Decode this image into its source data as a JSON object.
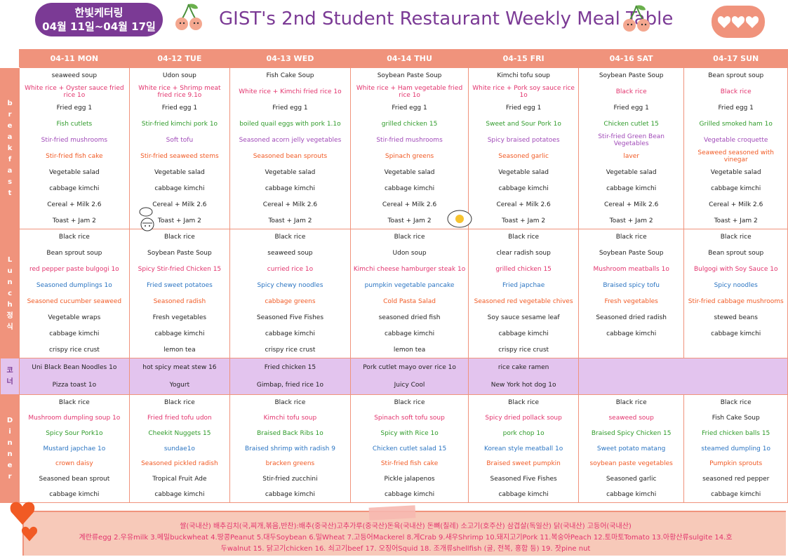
{
  "header": {
    "badge_line1": "한빛케터링",
    "badge_line2": "04월 11일~04월 17일",
    "title": "GIST's 2nd Student Restaurant Weekly Meal Table"
  },
  "colors": {
    "accent": "#f0937c",
    "purple": "#7b3a95",
    "corner_bg": "#e3c4ee"
  },
  "icons": [
    "cherry-icon",
    "heart-icon",
    "chef-doodle-icon",
    "egg-icon"
  ],
  "days": [
    "04-11 MON",
    "04-12 TUE",
    "04-13 WED",
    "04-14 THU",
    "04-15 FRI",
    "04-16 SAT",
    "04-17 SUN"
  ],
  "sections": {
    "breakfast": {
      "label": [
        "b",
        "r",
        "e",
        "a",
        "k",
        "f",
        "a",
        "s",
        "t"
      ]
    },
    "lunch": {
      "label": [
        "L",
        "u",
        "n",
        "c",
        "h"
      ],
      "sub": [
        "정",
        "식"
      ]
    },
    "corner": {
      "label": [
        "코",
        "너"
      ]
    },
    "dinner": {
      "label": [
        "D",
        "i",
        "n",
        "n",
        "e",
        "r"
      ]
    }
  },
  "breakfast": [
    [
      [
        "seaweed soup",
        "black"
      ],
      [
        "White rice + Oyster sauce fried rice 1o",
        "pink"
      ],
      [
        "Fried egg 1",
        "black"
      ],
      [
        "Fish cutlets",
        "green"
      ],
      [
        "Stir-fried mushrooms",
        "purple"
      ],
      [
        "Stir-fried fish cake",
        "orange"
      ],
      [
        "Vegetable salad",
        "black"
      ],
      [
        "cabbage kimchi",
        "black"
      ],
      [
        "Cereal + Milk 2.6",
        "black"
      ],
      [
        "Toast + Jam 2",
        "black"
      ]
    ],
    [
      [
        "Udon soup",
        "black"
      ],
      [
        "White rice + Shrimp meat fried rice 9.1o",
        "pink"
      ],
      [
        "Fried egg 1",
        "black"
      ],
      [
        "Stir-fried kimchi pork 1o",
        "green"
      ],
      [
        "Soft tofu",
        "purple"
      ],
      [
        "Stir-fried seaweed stems",
        "orange"
      ],
      [
        "Vegetable salad",
        "black"
      ],
      [
        "cabbage kimchi",
        "black"
      ],
      [
        "Cereal + Milk 2.6",
        "black"
      ],
      [
        "Toast + Jam 2",
        "black"
      ]
    ],
    [
      [
        "Fish Cake Soup",
        "black"
      ],
      [
        "White rice + Kimchi fried rice 1o",
        "pink"
      ],
      [
        "Fried egg 1",
        "black"
      ],
      [
        "boiled quail eggs with pork 1.1o",
        "green"
      ],
      [
        "Seasoned acorn jelly vegetables",
        "purple"
      ],
      [
        "Seasoned bean sprouts",
        "orange"
      ],
      [
        "Vegetable salad",
        "black"
      ],
      [
        "cabbage kimchi",
        "black"
      ],
      [
        "Cereal + Milk 2.6",
        "black"
      ],
      [
        "Toast + Jam 2",
        "black"
      ]
    ],
    [
      [
        "Soybean Paste Soup",
        "black"
      ],
      [
        "White rice + Ham vegetable fried rice 1o",
        "pink"
      ],
      [
        "Fried egg 1",
        "black"
      ],
      [
        "grilled chicken 15",
        "green"
      ],
      [
        "Stir-fried mushrooms",
        "purple"
      ],
      [
        "Spinach greens",
        "orange"
      ],
      [
        "Vegetable salad",
        "black"
      ],
      [
        "cabbage kimchi",
        "black"
      ],
      [
        "Cereal + Milk 2.6",
        "black"
      ],
      [
        "Toast + Jam 2",
        "black"
      ]
    ],
    [
      [
        "Kimchi tofu soup",
        "black"
      ],
      [
        "White rice + Pork soy sauce rice 1o",
        "pink"
      ],
      [
        "Fried egg 1",
        "black"
      ],
      [
        "Sweet and Sour Pork 1o",
        "green"
      ],
      [
        "Spicy braised potatoes",
        "purple"
      ],
      [
        "Seasoned garlic",
        "orange"
      ],
      [
        "Vegetable salad",
        "black"
      ],
      [
        "cabbage kimchi",
        "black"
      ],
      [
        "Cereal + Milk 2.6",
        "black"
      ],
      [
        "Toast + Jam 2",
        "black"
      ]
    ],
    [
      [
        "Soybean Paste Soup",
        "black"
      ],
      [
        "Black rice",
        "pink"
      ],
      [
        "Fried egg 1",
        "black"
      ],
      [
        "Chicken cutlet 15",
        "green"
      ],
      [
        "Stir-fried Green Bean Vegetables",
        "purple"
      ],
      [
        "laver",
        "orange"
      ],
      [
        "Vegetable salad",
        "black"
      ],
      [
        "cabbage kimchi",
        "black"
      ],
      [
        "Cereal + Milk 2.6",
        "black"
      ],
      [
        "Toast + Jam 2",
        "black"
      ]
    ],
    [
      [
        "Bean sprout soup",
        "black"
      ],
      [
        "Black rice",
        "pink"
      ],
      [
        "Fried egg 1",
        "black"
      ],
      [
        "Grilled smoked ham 1o",
        "green"
      ],
      [
        "Vegetable croquette",
        "purple"
      ],
      [
        "Seaweed seasoned with vinegar",
        "orange"
      ],
      [
        "Vegetable salad",
        "black"
      ],
      [
        "cabbage kimchi",
        "black"
      ],
      [
        "Cereal + Milk 2.6",
        "black"
      ],
      [
        "Toast + Jam 2",
        "black"
      ]
    ]
  ],
  "lunch": [
    [
      [
        "Black rice",
        "black"
      ],
      [
        "Bean sprout soup",
        "black"
      ],
      [
        "red pepper paste bulgogi 1o",
        "pink"
      ],
      [
        "Seasoned dumplings 1o",
        "blue"
      ],
      [
        "Seasoned cucumber seaweed",
        "orange"
      ],
      [
        "Vegetable wraps",
        "black"
      ],
      [
        "cabbage kimchi",
        "black"
      ],
      [
        "crispy rice crust",
        "black"
      ]
    ],
    [
      [
        "Black rice",
        "black"
      ],
      [
        "Soybean Paste Soup",
        "black"
      ],
      [
        "Spicy Stir-fried Chicken 15",
        "pink"
      ],
      [
        "Fried sweet potatoes",
        "blue"
      ],
      [
        "Seasoned radish",
        "orange"
      ],
      [
        "Fresh vegetables",
        "black"
      ],
      [
        "cabbage kimchi",
        "black"
      ],
      [
        "lemon tea",
        "black"
      ]
    ],
    [
      [
        "Black rice",
        "black"
      ],
      [
        "seaweed soup",
        "black"
      ],
      [
        "curried rice 1o",
        "pink"
      ],
      [
        "Spicy chewy noodles",
        "blue"
      ],
      [
        "cabbage greens",
        "orange"
      ],
      [
        "Seasoned Five Fishes",
        "black"
      ],
      [
        "cabbage kimchi",
        "black"
      ],
      [
        "crispy rice crust",
        "black"
      ]
    ],
    [
      [
        "Black rice",
        "black"
      ],
      [
        "Udon soup",
        "black"
      ],
      [
        "Kimchi cheese hamburger steak 1o",
        "pink"
      ],
      [
        "pumpkin vegetable pancake",
        "blue"
      ],
      [
        "Cold Pasta Salad",
        "orange"
      ],
      [
        "seasoned dried fish",
        "black"
      ],
      [
        "cabbage kimchi",
        "black"
      ],
      [
        "lemon tea",
        "black"
      ]
    ],
    [
      [
        "Black rice",
        "black"
      ],
      [
        "clear radish soup",
        "black"
      ],
      [
        "grilled chicken 15",
        "pink"
      ],
      [
        "Fried japchae",
        "blue"
      ],
      [
        "Seasoned red vegetable chives",
        "orange"
      ],
      [
        "Soy sauce sesame leaf",
        "black"
      ],
      [
        "cabbage kimchi",
        "black"
      ],
      [
        "crispy rice crust",
        "black"
      ]
    ],
    [
      [
        "Black rice",
        "black"
      ],
      [
        "Soybean Paste Soup",
        "black"
      ],
      [
        "Mushroom meatballs 1o",
        "pink"
      ],
      [
        "Braised spicy tofu",
        "blue"
      ],
      [
        "Fresh vegetables",
        "orange"
      ],
      [
        "Seasoned dried radish",
        "black"
      ],
      [
        "cabbage kimchi",
        "black"
      ],
      [
        "",
        "black"
      ]
    ],
    [
      [
        "Black rice",
        "black"
      ],
      [
        "Bean sprout soup",
        "black"
      ],
      [
        "Bulgogi with Soy Sauce 1o",
        "pink"
      ],
      [
        "Spicy noodles",
        "blue"
      ],
      [
        "Stir-fried cabbage mushrooms",
        "orange"
      ],
      [
        "stewed beans",
        "black"
      ],
      [
        "cabbage kimchi",
        "black"
      ],
      [
        "",
        "black"
      ]
    ]
  ],
  "corner": [
    [
      [
        "Uni Black Bean Noodles 1o",
        "black"
      ],
      [
        "Pizza toast 1o",
        "black"
      ]
    ],
    [
      [
        "hot spicy meat stew 16",
        "black"
      ],
      [
        "Yogurt",
        "black"
      ]
    ],
    [
      [
        "Fried chicken 15",
        "black"
      ],
      [
        "Gimbap, fried rice 1o",
        "black"
      ]
    ],
    [
      [
        "Pork cutlet mayo over rice 1o",
        "black"
      ],
      [
        "Juicy Cool",
        "black"
      ]
    ],
    [
      [
        "rice cake ramen",
        "black"
      ],
      [
        "New York hot dog 1o",
        "black"
      ]
    ]
  ],
  "dinner": [
    [
      [
        "Black rice",
        "black"
      ],
      [
        "Mushroom dumpling soup 1o",
        "pink"
      ],
      [
        "Spicy Sour Pork1o",
        "green"
      ],
      [
        "Mustard japchae 1o",
        "blue"
      ],
      [
        "crown daisy",
        "orange"
      ],
      [
        "Seasoned bean sprout",
        "black"
      ],
      [
        "cabbage kimchi",
        "black"
      ]
    ],
    [
      [
        "Black rice",
        "black"
      ],
      [
        "Fried fried tofu udon",
        "pink"
      ],
      [
        "Cheekit Nuggets 15",
        "green"
      ],
      [
        "sundae1o",
        "blue"
      ],
      [
        "Seasoned pickled radish",
        "orange"
      ],
      [
        "Tropical Fruit Ade",
        "black"
      ],
      [
        "cabbage kimchi",
        "black"
      ]
    ],
    [
      [
        "Black rice",
        "black"
      ],
      [
        "Kimchi tofu soup",
        "pink"
      ],
      [
        "Braised Back Ribs 1o",
        "green"
      ],
      [
        "Braised shrimp with radish 9",
        "blue"
      ],
      [
        "bracken greens",
        "orange"
      ],
      [
        "Stir-fried zucchini",
        "black"
      ],
      [
        "cabbage kimchi",
        "black"
      ]
    ],
    [
      [
        "Black rice",
        "black"
      ],
      [
        "Spinach soft tofu soup",
        "pink"
      ],
      [
        "Spicy with Rice 1o",
        "green"
      ],
      [
        "Chicken cutlet salad 15",
        "blue"
      ],
      [
        "Stir-fried fish cake",
        "orange"
      ],
      [
        "Pickle jalapenos",
        "black"
      ],
      [
        "cabbage kimchi",
        "black"
      ]
    ],
    [
      [
        "Black rice",
        "black"
      ],
      [
        "Spicy dried pollack soup",
        "pink"
      ],
      [
        "pork chop 1o",
        "green"
      ],
      [
        "Korean style meatball 1o",
        "blue"
      ],
      [
        "Braised sweet pumpkin",
        "orange"
      ],
      [
        "Seasoned Five Fishes",
        "black"
      ],
      [
        "cabbage kimchi",
        "black"
      ]
    ],
    [
      [
        "Black rice",
        "black"
      ],
      [
        "seaweed soup",
        "pink"
      ],
      [
        "Braised Spicy Chicken 15",
        "green"
      ],
      [
        "Sweet potato matang",
        "blue"
      ],
      [
        "soybean paste vegetables",
        "orange"
      ],
      [
        "Seasoned garlic",
        "black"
      ],
      [
        "cabbage kimchi",
        "black"
      ]
    ],
    [
      [
        "Black rice",
        "black"
      ],
      [
        "Fish Cake Soup",
        "black"
      ],
      [
        "Fried chicken balls 15",
        "green"
      ],
      [
        "steamed dumpling 1o",
        "blue"
      ],
      [
        "Pumpkin sprouts",
        "orange"
      ],
      [
        "seasoned red pepper",
        "black"
      ],
      [
        "cabbage kimchi",
        "black"
      ]
    ]
  ],
  "footer": {
    "line1": "쌀(국내산) 배추김치(국,찌개,볶음,반찬):배추(중국산)고추가루(중국산)돈육(국내산) 돈뼈(칠레) 소고기(호주산) 삼겹살(독일산) 닭(국내산) 고등어(국내산)",
    "line2": "계란류egg 2.우유milk 3.메밀buckwheat 4.땅콩Peanut 5.대두Soybean 6.밀Wheat 7.고등어Mackerel 8.게Crab 9.새우Shrimp 10.돼지고기Pork 11.복숭아Peach 12.토마토Tomato 13.아황산류sulgite 14.호",
    "line3": "두walnut 15. 닭고기chicken 16. 쇠고기beef 17. 오징어Squid 18. 조개류shellfish (굴, 전복, 홍합 등) 19. 잣pine nut"
  }
}
